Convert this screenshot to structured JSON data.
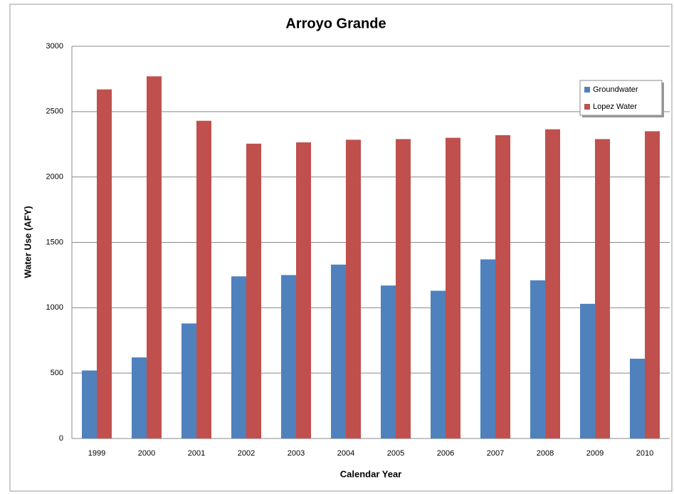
{
  "chart_data": {
    "type": "bar",
    "title": "Arroyo Grande",
    "x_label": "Calendar Year",
    "y_label": "Water Use (AFY)",
    "categories": [
      "1999",
      "2000",
      "2001",
      "2002",
      "2003",
      "2004",
      "2005",
      "2006",
      "2007",
      "2008",
      "2009",
      "2010"
    ],
    "series": [
      {
        "name": "Groundwater",
        "color": "#4f81bd",
        "values": [
          520,
          620,
          880,
          1240,
          1250,
          1330,
          1170,
          1130,
          1370,
          1210,
          1030,
          610
        ]
      },
      {
        "name": "Lopez Water",
        "color": "#c0504d",
        "values": [
          2670,
          2770,
          2430,
          2255,
          2265,
          2285,
          2290,
          2300,
          2320,
          2365,
          2290,
          2350
        ]
      }
    ],
    "ylim": [
      0,
      3000
    ],
    "yticks": [
      0,
      500,
      1000,
      1500,
      2000,
      2500,
      3000
    ],
    "grid": true,
    "legend": "upper-right"
  }
}
